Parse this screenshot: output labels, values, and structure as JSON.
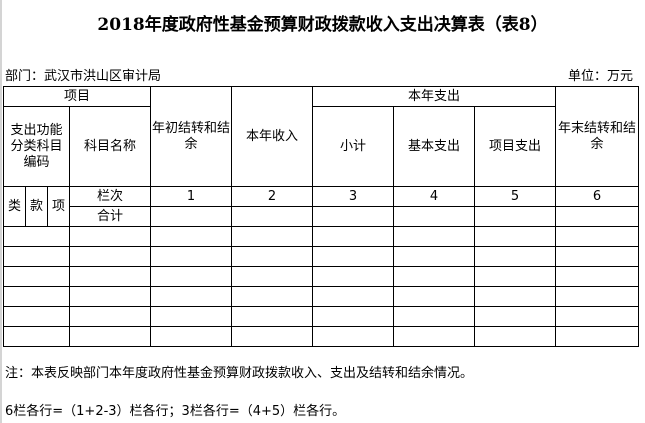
{
  "title": "2018年度政府性基金预算财政拨款收入支出决算表（表8）",
  "department": "部门：武汉市洪山区审计局",
  "unit": "单位：万元",
  "header": {
    "project": "项目",
    "code": "支出功能分类科目编码",
    "subject_name": "科目名称",
    "begin_balance": "年初结转和结余",
    "income": "本年收入",
    "expense": "本年支出",
    "subtotal": "小计",
    "basic": "基本支出",
    "project_exp": "项目支出",
    "end_balance": "年末结转和结余",
    "lei": "类",
    "kuan": "款",
    "xiang": "项",
    "column_order": "栏次",
    "total": "合计",
    "col_numbers": [
      "1",
      "2",
      "3",
      "4",
      "5",
      "6"
    ]
  },
  "empty_rows": 6,
  "notes": [
    "注：本表反映部门本年度政府性基金预算财政拨款收入、支出及结转和结余情况。",
    "6栏各行=（1+2-3）栏各行；3栏各行=（4+5）栏各行。"
  ]
}
